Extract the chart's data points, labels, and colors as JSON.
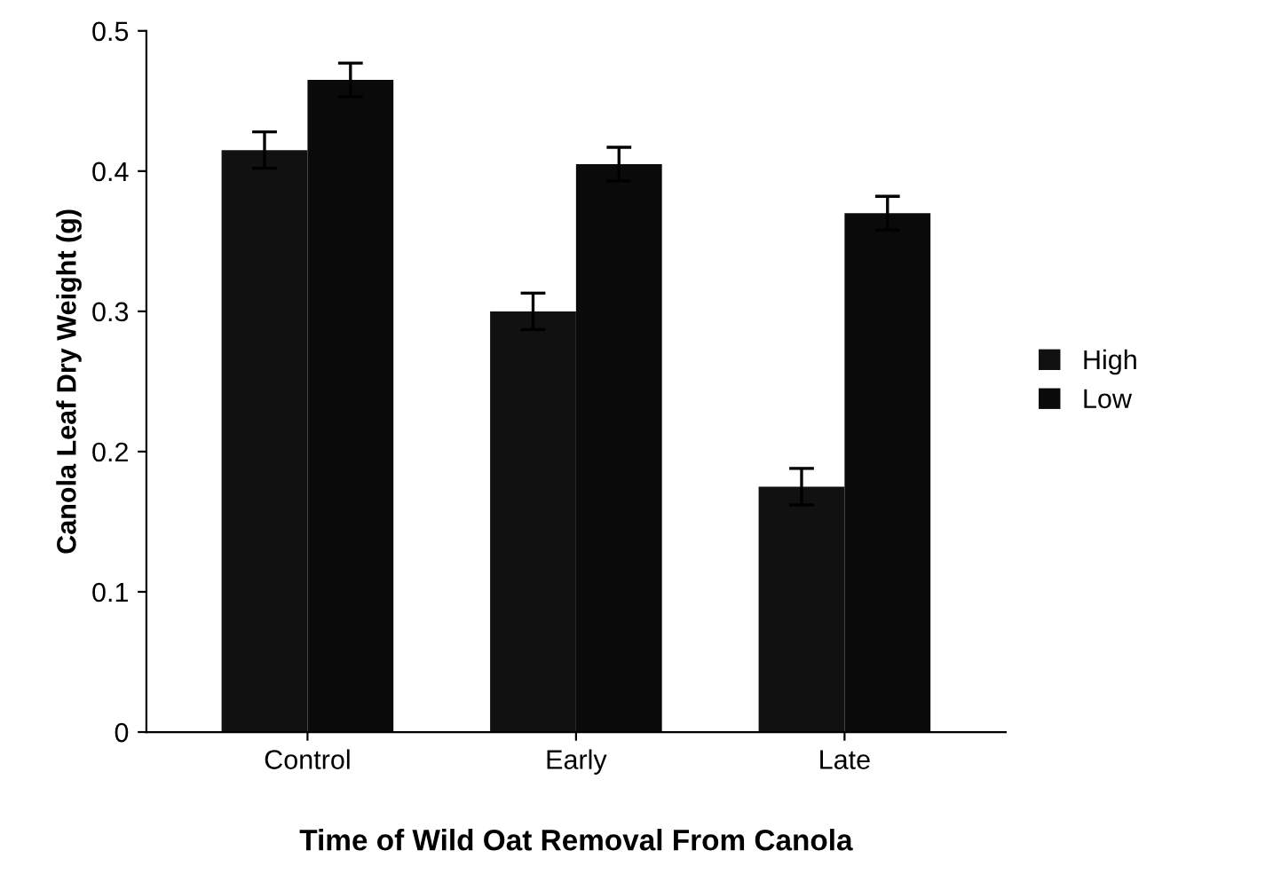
{
  "chart_data": {
    "type": "bar",
    "xlabel": "Time of Wild Oat Removal From Canola",
    "ylabel": "Canola Leaf Dry Weight (g)",
    "categories": [
      "Control",
      "Early",
      "Late"
    ],
    "series": [
      {
        "name": "High",
        "color": "#111111",
        "values": [
          0.415,
          0.3,
          0.175
        ],
        "errors": [
          0.013,
          0.013,
          0.013
        ]
      },
      {
        "name": "Low",
        "color": "#0a0a0a",
        "values": [
          0.465,
          0.405,
          0.37
        ],
        "errors": [
          0.012,
          0.012,
          0.012
        ]
      }
    ],
    "ylim": [
      0,
      0.5
    ],
    "yticks": [
      {
        "value": 0,
        "label": "0"
      },
      0.1,
      0.2,
      0.3,
      0.4,
      0.5
    ],
    "grid": false,
    "legend": "right"
  }
}
